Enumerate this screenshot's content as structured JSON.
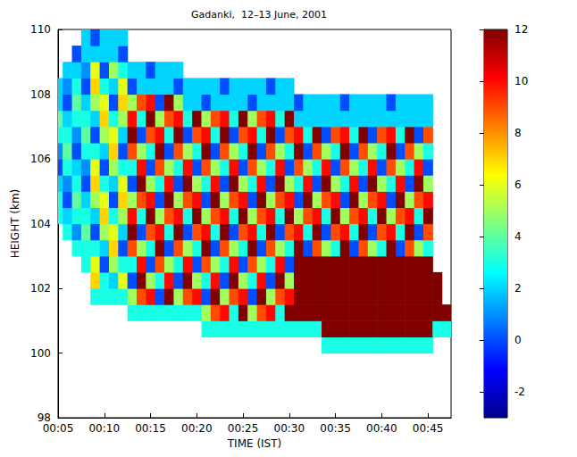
{
  "chart_data": {
    "type": "heatmap",
    "title": "Gadanki,  12–13 June, 2001",
    "x_label": "TIME (IST)",
    "y_label": "HEIGHT (km)",
    "x": [
      5,
      6,
      7,
      8,
      9,
      10,
      11,
      12,
      13,
      14,
      15,
      16,
      17,
      18,
      19,
      20,
      21,
      22,
      23,
      24,
      25,
      26,
      27,
      28,
      29,
      30,
      31,
      32,
      33,
      34,
      35,
      36,
      37,
      38,
      39,
      40,
      41,
      42,
      43,
      44,
      45,
      46,
      47
    ],
    "y": [
      98.25,
      98.75,
      99.25,
      99.75,
      100.25,
      100.75,
      101.25,
      101.75,
      102.25,
      102.75,
      103.25,
      103.75,
      104.25,
      104.75,
      105.25,
      105.75,
      106.25,
      106.75,
      107.25,
      107.75,
      108.25,
      108.75,
      109.25,
      109.75
    ],
    "cells": [
      [
        null,
        null,
        null,
        null,
        null,
        null,
        null,
        null,
        null,
        null,
        null,
        null,
        null,
        null,
        null,
        null,
        null,
        null,
        null,
        null,
        null,
        null,
        null,
        null,
        null,
        null,
        null,
        null,
        null,
        null,
        null,
        null,
        null,
        null,
        null,
        null,
        null,
        null,
        null,
        null,
        null,
        null,
        null
      ],
      [
        null,
        null,
        null,
        null,
        null,
        null,
        null,
        null,
        null,
        null,
        null,
        null,
        null,
        null,
        null,
        null,
        null,
        null,
        null,
        null,
        null,
        null,
        null,
        null,
        null,
        null,
        null,
        null,
        null,
        null,
        null,
        null,
        null,
        null,
        null,
        null,
        null,
        null,
        null,
        null,
        null,
        null,
        null
      ],
      [
        null,
        null,
        null,
        null,
        null,
        null,
        null,
        null,
        null,
        null,
        null,
        null,
        null,
        null,
        null,
        null,
        null,
        null,
        null,
        null,
        null,
        null,
        null,
        null,
        null,
        null,
        null,
        null,
        null,
        null,
        null,
        null,
        null,
        null,
        null,
        null,
        null,
        null,
        null,
        null,
        null,
        null,
        null
      ],
      [
        null,
        null,
        null,
        null,
        null,
        null,
        null,
        null,
        null,
        null,
        null,
        null,
        null,
        null,
        null,
        null,
        null,
        null,
        null,
        null,
        null,
        null,
        null,
        null,
        null,
        null,
        null,
        null,
        null,
        null,
        null,
        null,
        null,
        null,
        null,
        null,
        null,
        null,
        null,
        null,
        null,
        null,
        null
      ],
      [
        null,
        null,
        null,
        null,
        null,
        null,
        null,
        null,
        null,
        null,
        null,
        null,
        null,
        null,
        null,
        null,
        null,
        null,
        null,
        null,
        null,
        null,
        null,
        null,
        null,
        null,
        null,
        null,
        null,
        3,
        3,
        3,
        3,
        3,
        3,
        3,
        3,
        3,
        3,
        3,
        3,
        null,
        null
      ],
      [
        null,
        null,
        null,
        null,
        null,
        null,
        null,
        null,
        null,
        null,
        null,
        null,
        null,
        null,
        null,
        null,
        3,
        3,
        3,
        3,
        3,
        3,
        3,
        3,
        3,
        3,
        3,
        3,
        3,
        12,
        12,
        12,
        12,
        12,
        12,
        12,
        12,
        12,
        12,
        12,
        12,
        3,
        3
      ],
      [
        null,
        null,
        null,
        null,
        null,
        null,
        null,
        null,
        3,
        3,
        3,
        3,
        3,
        3,
        3,
        3,
        5,
        9,
        10,
        3,
        12,
        5,
        9,
        10,
        3,
        12,
        12,
        12,
        12,
        12,
        12,
        12,
        12,
        12,
        12,
        12,
        12,
        12,
        12,
        12,
        12,
        12,
        12
      ],
      [
        null,
        null,
        null,
        null,
        3,
        3,
        3,
        3,
        5,
        9,
        10,
        0,
        12,
        5,
        9,
        10,
        0,
        12,
        5,
        9,
        10,
        0,
        12,
        5,
        9,
        10,
        12,
        12,
        12,
        12,
        12,
        12,
        12,
        12,
        12,
        12,
        12,
        12,
        12,
        12,
        12,
        12,
        null
      ],
      [
        null,
        null,
        null,
        null,
        7,
        3,
        2,
        6,
        0,
        12,
        5,
        3,
        10,
        0,
        12,
        5,
        3,
        10,
        0,
        12,
        5,
        3,
        10,
        0,
        12,
        5,
        12,
        12,
        12,
        12,
        12,
        12,
        12,
        12,
        12,
        12,
        12,
        12,
        12,
        12,
        12,
        12,
        null
      ],
      [
        null,
        null,
        null,
        3,
        6,
        0,
        5,
        3,
        3,
        10,
        0,
        9,
        5,
        3,
        10,
        0,
        9,
        5,
        3,
        10,
        0,
        9,
        5,
        3,
        10,
        0,
        12,
        12,
        12,
        12,
        12,
        12,
        12,
        12,
        12,
        12,
        12,
        12,
        12,
        12,
        12,
        null,
        null
      ],
      [
        null,
        null,
        3,
        3,
        3,
        2,
        7,
        0,
        9,
        5,
        3,
        12,
        0,
        9,
        5,
        3,
        12,
        0,
        9,
        5,
        3,
        12,
        0,
        9,
        5,
        3,
        12,
        0,
        9,
        5,
        3,
        12,
        0,
        9,
        5,
        3,
        12,
        0,
        9,
        5,
        3,
        null,
        null
      ],
      [
        null,
        3,
        1,
        4,
        0,
        5,
        6,
        2,
        12,
        0,
        9,
        10,
        3,
        12,
        0,
        9,
        10,
        3,
        12,
        0,
        9,
        10,
        3,
        12,
        0,
        9,
        10,
        3,
        12,
        0,
        9,
        10,
        3,
        12,
        0,
        9,
        10,
        3,
        12,
        0,
        9,
        null,
        null
      ],
      [
        3,
        2,
        3,
        3,
        2,
        7,
        3,
        5,
        10,
        3,
        12,
        5,
        9,
        10,
        3,
        12,
        5,
        9,
        10,
        3,
        12,
        5,
        9,
        10,
        3,
        12,
        5,
        9,
        10,
        3,
        12,
        5,
        9,
        10,
        3,
        12,
        5,
        9,
        10,
        3,
        12,
        null,
        null
      ],
      [
        3,
        0,
        4,
        2,
        5,
        6,
        0,
        7,
        5,
        9,
        10,
        0,
        12,
        5,
        9,
        10,
        0,
        12,
        5,
        9,
        10,
        0,
        12,
        5,
        9,
        10,
        0,
        12,
        5,
        9,
        10,
        0,
        12,
        5,
        9,
        10,
        0,
        12,
        5,
        9,
        10,
        null,
        null
      ],
      [
        2,
        1,
        3,
        0,
        7,
        3,
        2,
        6,
        0,
        12,
        5,
        3,
        10,
        0,
        12,
        5,
        3,
        10,
        0,
        12,
        5,
        3,
        10,
        0,
        12,
        5,
        3,
        10,
        0,
        12,
        5,
        3,
        10,
        0,
        12,
        5,
        3,
        10,
        0,
        12,
        5,
        null,
        null
      ],
      [
        0,
        3,
        2,
        1,
        6,
        0,
        5,
        3,
        3,
        10,
        0,
        9,
        5,
        3,
        10,
        0,
        9,
        5,
        3,
        10,
        0,
        9,
        5,
        3,
        10,
        0,
        9,
        5,
        3,
        10,
        0,
        9,
        5,
        3,
        10,
        0,
        9,
        5,
        3,
        10,
        0,
        null,
        null
      ],
      [
        1,
        4,
        0,
        3,
        3,
        2,
        7,
        0,
        9,
        5,
        3,
        12,
        0,
        9,
        5,
        3,
        12,
        0,
        9,
        5,
        3,
        12,
        0,
        9,
        5,
        3,
        12,
        0,
        9,
        5,
        3,
        12,
        0,
        9,
        5,
        3,
        12,
        0,
        9,
        5,
        3,
        null,
        null
      ],
      [
        3,
        3,
        1,
        4,
        0,
        5,
        6,
        2,
        12,
        0,
        9,
        10,
        3,
        12,
        0,
        9,
        10,
        3,
        12,
        0,
        9,
        10,
        3,
        12,
        0,
        9,
        10,
        3,
        12,
        0,
        9,
        10,
        3,
        12,
        0,
        9,
        10,
        3,
        12,
        0,
        9,
        null,
        null
      ],
      [
        4,
        2,
        3,
        3,
        2,
        7,
        3,
        5,
        10,
        3,
        12,
        5,
        9,
        10,
        3,
        12,
        5,
        9,
        10,
        3,
        12,
        5,
        9,
        10,
        3,
        12,
        2,
        2,
        2,
        2,
        2,
        2,
        2,
        2,
        2,
        2,
        2,
        2,
        2,
        2,
        2,
        null,
        null
      ],
      [
        2,
        0,
        4,
        2,
        5,
        6,
        0,
        7,
        5,
        9,
        10,
        0,
        12,
        5,
        2,
        2,
        0,
        2,
        2,
        2,
        2,
        0,
        2,
        2,
        2,
        2,
        0,
        2,
        2,
        2,
        2,
        0,
        2,
        2,
        2,
        2,
        0,
        2,
        2,
        2,
        2,
        null,
        null
      ],
      [
        2,
        1,
        3,
        0,
        7,
        3,
        2,
        6,
        0,
        2,
        2,
        2,
        2,
        0,
        2,
        2,
        2,
        2,
        0,
        2,
        2,
        2,
        2,
        0,
        2,
        2,
        null,
        null,
        null,
        null,
        null,
        null,
        null,
        null,
        null,
        null,
        null,
        null,
        null,
        null,
        null,
        null,
        null
      ],
      [
        null,
        2,
        2,
        1,
        6,
        0,
        5,
        3,
        2,
        2,
        0,
        2,
        2,
        2,
        null,
        null,
        null,
        null,
        null,
        null,
        null,
        null,
        null,
        null,
        null,
        null,
        null,
        null,
        null,
        null,
        null,
        null,
        null,
        null,
        null,
        null,
        null,
        null,
        null,
        null,
        null,
        null,
        null
      ],
      [
        null,
        null,
        0,
        2,
        2,
        2,
        2,
        0,
        null,
        null,
        null,
        null,
        null,
        null,
        null,
        null,
        null,
        null,
        null,
        null,
        null,
        null,
        null,
        null,
        null,
        null,
        null,
        null,
        null,
        null,
        null,
        null,
        null,
        null,
        null,
        null,
        null,
        null,
        null,
        null,
        null,
        null,
        null
      ],
      [
        null,
        null,
        null,
        2,
        0,
        2,
        2,
        2,
        null,
        null,
        null,
        null,
        null,
        null,
        null,
        null,
        null,
        null,
        null,
        null,
        null,
        null,
        null,
        null,
        null,
        null,
        null,
        null,
        null,
        null,
        null,
        null,
        null,
        null,
        null,
        null,
        null,
        null,
        null,
        null,
        null,
        null,
        null
      ]
    ],
    "xlim": [
      5,
      47.5
    ],
    "xticks": [
      {
        "value": 5,
        "label": "00:05"
      },
      {
        "value": 10,
        "label": "00:10"
      },
      {
        "value": 15,
        "label": "00:15"
      },
      {
        "value": 20,
        "label": "00:20"
      },
      {
        "value": 25,
        "label": "00:25"
      },
      {
        "value": 30,
        "label": "00:30"
      },
      {
        "value": 35,
        "label": "00:35"
      },
      {
        "value": 40,
        "label": "00:40"
      },
      {
        "value": 45,
        "label": "00:45"
      }
    ],
    "ylim": [
      98,
      110
    ],
    "yticks": [
      98,
      100,
      102,
      104,
      106,
      108,
      110
    ],
    "colorbar_range": [
      -3,
      12
    ],
    "colorbar_ticks": [
      -2,
      0,
      2,
      4,
      6,
      8,
      10,
      12
    ]
  }
}
